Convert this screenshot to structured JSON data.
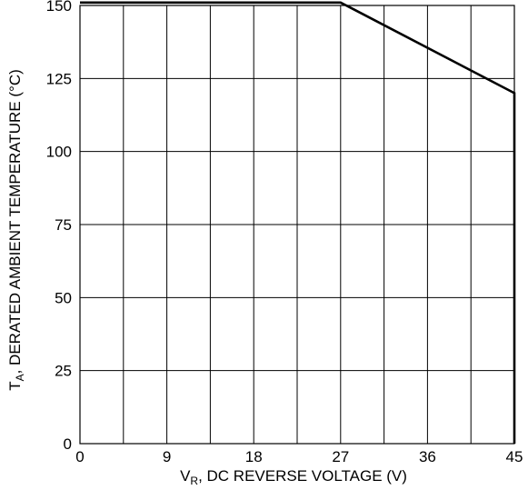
{
  "chart_data": {
    "type": "line",
    "x_unit_label": "DC REVERSE VOLTAGE (V)",
    "y_unit_label": "DERATED AMBIENT TEMPERATURE (°C)",
    "xlabel_symbol": "V",
    "xlabel_subscript": "R",
    "xlabel_rest": ", DC REVERSE VOLTAGE (V)",
    "ylabel_symbol": "T",
    "ylabel_subscript": "A",
    "ylabel_rest": ", DERATED AMBIENT TEMPERATURE (°C)",
    "xlim": [
      0,
      45
    ],
    "ylim": [
      0,
      150
    ],
    "x_ticks": [
      0,
      9,
      18,
      27,
      36,
      45
    ],
    "x_tick_labels": [
      "0",
      "9",
      "18",
      "27",
      "36",
      "45"
    ],
    "x_grid": [
      0,
      4.5,
      9,
      13.5,
      18,
      22.5,
      27,
      31.5,
      36,
      40.5,
      45
    ],
    "y_ticks": [
      0,
      25,
      50,
      75,
      100,
      125,
      150
    ],
    "y_tick_labels": [
      "0",
      "25",
      "50",
      "75",
      "100",
      "125",
      "150"
    ],
    "grid": true,
    "series": [
      {
        "x": [
          0,
          27,
          45,
          45
        ],
        "y": [
          151,
          151,
          120,
          0
        ]
      }
    ]
  }
}
